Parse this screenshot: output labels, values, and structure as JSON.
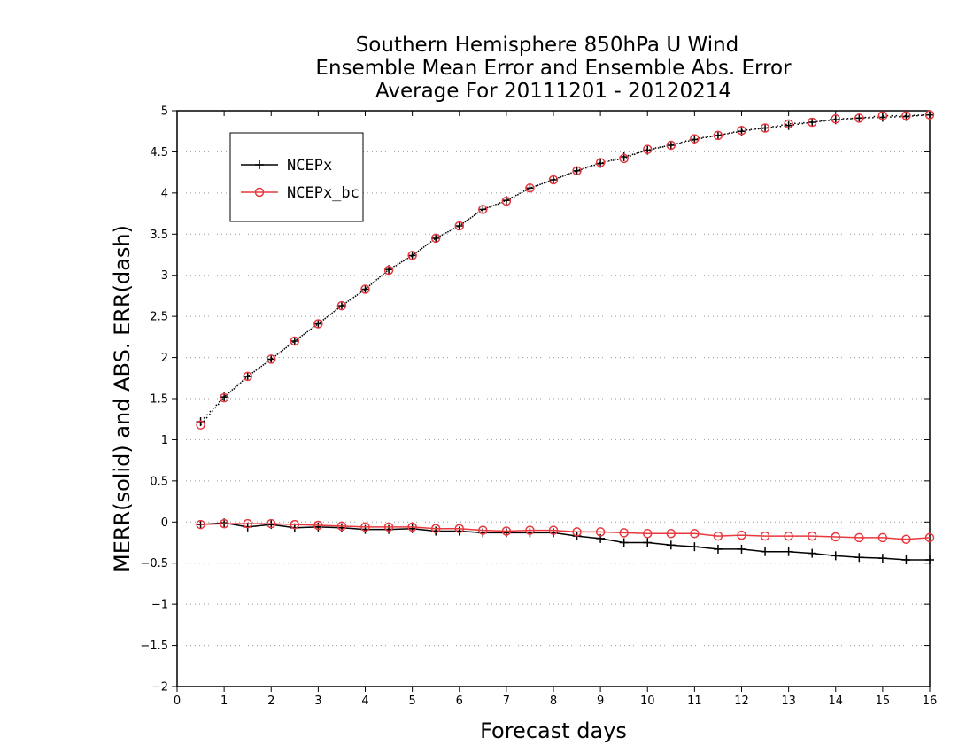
{
  "chart_data": {
    "type": "line",
    "title_lines": [
      "Southern Hemisphere 850hPa U Wind",
      "Ensemble Mean Error and Ensemble Abs. Error",
      "Average For 20111201 - 20120214"
    ],
    "xlabel": "Forecast days",
    "ylabel": "MERR(solid) and ABS. ERR(dash)",
    "xlim": [
      0,
      16
    ],
    "ylim": [
      -2,
      5
    ],
    "x_ticks": [
      0,
      1,
      2,
      3,
      4,
      5,
      6,
      7,
      8,
      9,
      10,
      11,
      12,
      13,
      14,
      15,
      16
    ],
    "y_ticks": [
      -2,
      -1.5,
      -1,
      -0.5,
      0,
      0.5,
      1,
      1.5,
      2,
      2.5,
      3,
      3.5,
      4,
      4.5,
      5
    ],
    "x_tick_labels": [
      "0",
      "1",
      "2",
      "3",
      "4",
      "5",
      "6",
      "7",
      "8",
      "9",
      "10",
      "11",
      "12",
      "13",
      "14",
      "15",
      "16"
    ],
    "y_tick_labels": [
      "−2",
      "−1.5",
      "−1",
      "−0.5",
      "0",
      "0.5",
      "1",
      "1.5",
      "2",
      "2.5",
      "3",
      "3.5",
      "4",
      "4.5",
      "5"
    ],
    "grid": "horizontal dotted",
    "legend_position": "top-left",
    "x": [
      0.5,
      1,
      1.5,
      2,
      2.5,
      3,
      3.5,
      4,
      4.5,
      5,
      5.5,
      6,
      6.5,
      7,
      7.5,
      8,
      8.5,
      9,
      9.5,
      10,
      10.5,
      11,
      11.5,
      12,
      12.5,
      13,
      13.5,
      14,
      14.5,
      15,
      15.5,
      16
    ],
    "series": [
      {
        "name": "NCEPx",
        "kind": "mean_error",
        "style": "solid",
        "marker": "plus",
        "color": "#000000",
        "values": [
          -0.03,
          -0.01,
          -0.06,
          -0.03,
          -0.07,
          -0.06,
          -0.07,
          -0.09,
          -0.09,
          -0.08,
          -0.11,
          -0.11,
          -0.13,
          -0.13,
          -0.13,
          -0.13,
          -0.17,
          -0.2,
          -0.25,
          -0.25,
          -0.28,
          -0.3,
          -0.33,
          -0.33,
          -0.36,
          -0.36,
          -0.38,
          -0.41,
          -0.43,
          -0.44,
          -0.46,
          -0.46
        ]
      },
      {
        "name": "NCEPx",
        "kind": "abs_error",
        "style": "dash",
        "marker": "plus",
        "color": "#000000",
        "values": [
          1.22,
          1.52,
          1.77,
          1.98,
          2.2,
          2.41,
          2.63,
          2.83,
          3.07,
          3.24,
          3.45,
          3.6,
          3.8,
          3.91,
          4.06,
          4.16,
          4.27,
          4.36,
          4.44,
          4.52,
          4.58,
          4.65,
          4.7,
          4.75,
          4.79,
          4.82,
          4.86,
          4.89,
          4.91,
          4.92,
          4.93,
          4.95
        ]
      },
      {
        "name": "NCEPx_bc",
        "kind": "mean_error",
        "style": "solid",
        "marker": "circle",
        "color": "#e8383d",
        "values": [
          -0.03,
          -0.02,
          -0.02,
          -0.02,
          -0.03,
          -0.04,
          -0.05,
          -0.06,
          -0.06,
          -0.06,
          -0.08,
          -0.08,
          -0.1,
          -0.11,
          -0.1,
          -0.1,
          -0.12,
          -0.12,
          -0.13,
          -0.14,
          -0.14,
          -0.14,
          -0.17,
          -0.16,
          -0.17,
          -0.17,
          -0.17,
          -0.18,
          -0.19,
          -0.19,
          -0.21,
          -0.19
        ]
      },
      {
        "name": "NCEPx_bc",
        "kind": "abs_error",
        "style": "dash",
        "marker": "circle",
        "color": "#e8383d",
        "values": [
          1.18,
          1.51,
          1.77,
          1.98,
          2.2,
          2.41,
          2.63,
          2.83,
          3.06,
          3.24,
          3.45,
          3.6,
          3.8,
          3.9,
          4.06,
          4.16,
          4.27,
          4.37,
          4.42,
          4.53,
          4.58,
          4.66,
          4.7,
          4.76,
          4.79,
          4.84,
          4.86,
          4.9,
          4.91,
          4.94,
          4.94,
          4.95
        ]
      }
    ],
    "legend": [
      {
        "label": "NCEPx",
        "marker": "plus",
        "color": "#000000"
      },
      {
        "label": "NCEPx_bc",
        "marker": "circle",
        "color": "#e8383d"
      }
    ]
  }
}
